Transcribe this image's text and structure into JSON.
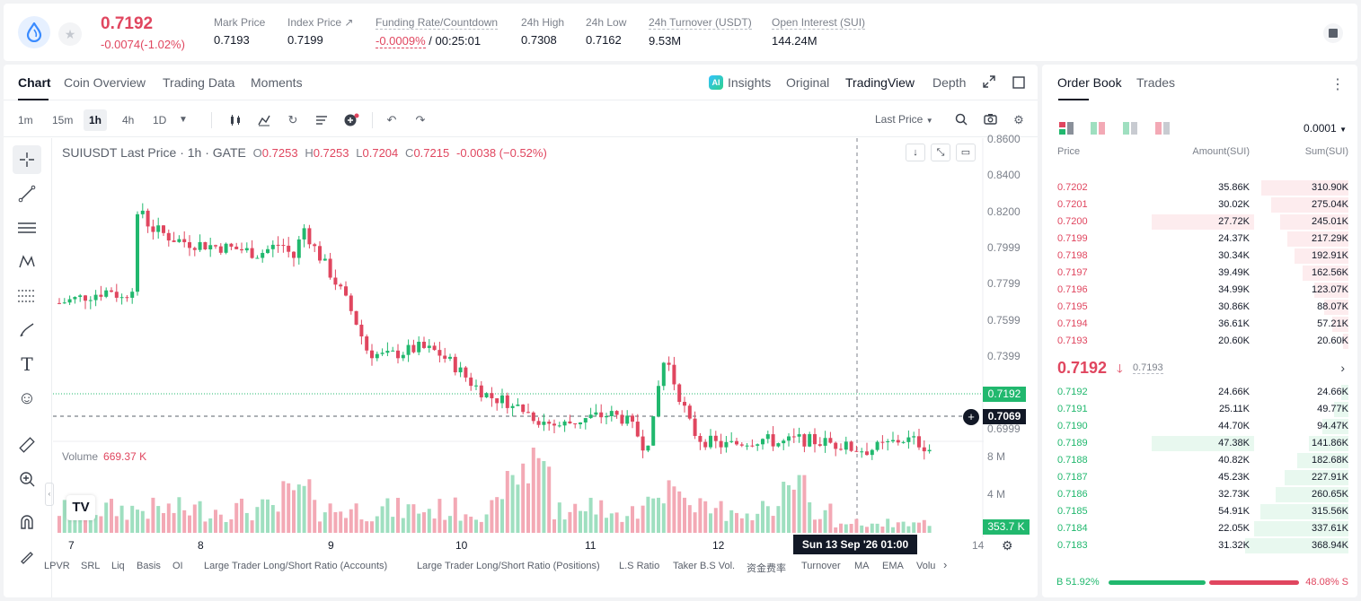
{
  "ticker": {
    "price": "0.7192",
    "change": "-0.0074(-1.02%)",
    "stats": [
      {
        "label": "Mark Price",
        "value": "0.7193"
      },
      {
        "label": "Index Price ↗",
        "value": "0.7199"
      },
      {
        "label": "Funding Rate/Countdown",
        "rate": "-0.0009%",
        "countdown": "/ 00:25:01"
      },
      {
        "label": "24h High",
        "value": "0.7308"
      },
      {
        "label": "24h Low",
        "value": "0.7162"
      },
      {
        "label": "24h Turnover (USDT)",
        "value": "9.53M"
      },
      {
        "label": "Open Interest (SUI)",
        "value": "144.24M"
      }
    ]
  },
  "chart_tabs": [
    "Chart",
    "Coin Overview",
    "Trading Data",
    "Moments"
  ],
  "view_tabs": [
    "Insights",
    "Original",
    "TradingView",
    "Depth"
  ],
  "ai_badge": "AI",
  "timeframes": [
    "1m",
    "15m",
    "1h",
    "4h",
    "1D"
  ],
  "last_price_select": "Last Price",
  "legend": {
    "symbol": "SUIUSDT Last Price · 1h · GATE",
    "o": "0.7253",
    "h": "0.7253",
    "l": "0.7204",
    "c": "0.7215",
    "chg": "-0.0038 (−0.52%)"
  },
  "volume": {
    "label": "Volume",
    "value": "669.37 K"
  },
  "y_axis": [
    "0.8600",
    "0.8400",
    "0.8200",
    "0.7999",
    "0.7799",
    "0.7599",
    "0.7399",
    "0.6999"
  ],
  "vol_axis": [
    "8 M",
    "4 M"
  ],
  "price_tags": {
    "last": "0.7192",
    "cross": "0.7069",
    "vol": "353.7 K"
  },
  "x_axis": [
    "7",
    "8",
    "9",
    "10",
    "11",
    "12",
    "14"
  ],
  "cross_time": "Sun 13 Sep '26   01:00",
  "indicators": [
    "LPVR",
    "SRL",
    "Liq",
    "Basis",
    "OI",
    "Large Trader Long/Short Ratio (Accounts)",
    "Large Trader Long/Short Ratio (Positions)",
    "L.S Ratio",
    "Taker B.S Vol.",
    "资金费率",
    "Turnover",
    "MA",
    "EMA",
    "Volu"
  ],
  "orderbook": {
    "tabs": [
      "Order Book",
      "Trades"
    ],
    "tick": "0.0001",
    "headers": [
      "Price",
      "Amount(SUI)",
      "Sum(SUI)"
    ],
    "asks": [
      {
        "price": "0.7202",
        "amount": "35.86K",
        "sum": "310.90K"
      },
      {
        "price": "0.7201",
        "amount": "30.02K",
        "sum": "275.04K"
      },
      {
        "price": "0.7200",
        "amount": "27.72K",
        "sum": "245.01K"
      },
      {
        "price": "0.7199",
        "amount": "24.37K",
        "sum": "217.29K"
      },
      {
        "price": "0.7198",
        "amount": "30.34K",
        "sum": "192.91K"
      },
      {
        "price": "0.7197",
        "amount": "39.49K",
        "sum": "162.56K"
      },
      {
        "price": "0.7196",
        "amount": "34.99K",
        "sum": "123.07K"
      },
      {
        "price": "0.7195",
        "amount": "30.86K",
        "sum": "88.07K"
      },
      {
        "price": "0.7194",
        "amount": "36.61K",
        "sum": "57.21K"
      },
      {
        "price": "0.7193",
        "amount": "20.60K",
        "sum": "20.60K"
      }
    ],
    "mid": {
      "price": "0.7192",
      "mark": "0.7193"
    },
    "bids": [
      {
        "price": "0.7192",
        "amount": "24.66K",
        "sum": "24.66K"
      },
      {
        "price": "0.7191",
        "amount": "25.11K",
        "sum": "49.77K"
      },
      {
        "price": "0.7190",
        "amount": "44.70K",
        "sum": "94.47K"
      },
      {
        "price": "0.7189",
        "amount": "47.38K",
        "sum": "141.86K"
      },
      {
        "price": "0.7188",
        "amount": "40.82K",
        "sum": "182.68K"
      },
      {
        "price": "0.7187",
        "amount": "45.23K",
        "sum": "227.91K"
      },
      {
        "price": "0.7186",
        "amount": "32.73K",
        "sum": "260.65K"
      },
      {
        "price": "0.7185",
        "amount": "54.91K",
        "sum": "315.56K"
      },
      {
        "price": "0.7184",
        "amount": "22.05K",
        "sum": "337.61K"
      },
      {
        "price": "0.7183",
        "amount": "31.32K",
        "sum": "368.94K"
      }
    ],
    "buy_ratio": "B 51.92%",
    "sell_ratio": "48.08% S"
  },
  "colors": {
    "up": "#21b86e",
    "down": "#e0465f",
    "up_vol": "#9fdfc0",
    "down_vol": "#f3a9b5"
  }
}
